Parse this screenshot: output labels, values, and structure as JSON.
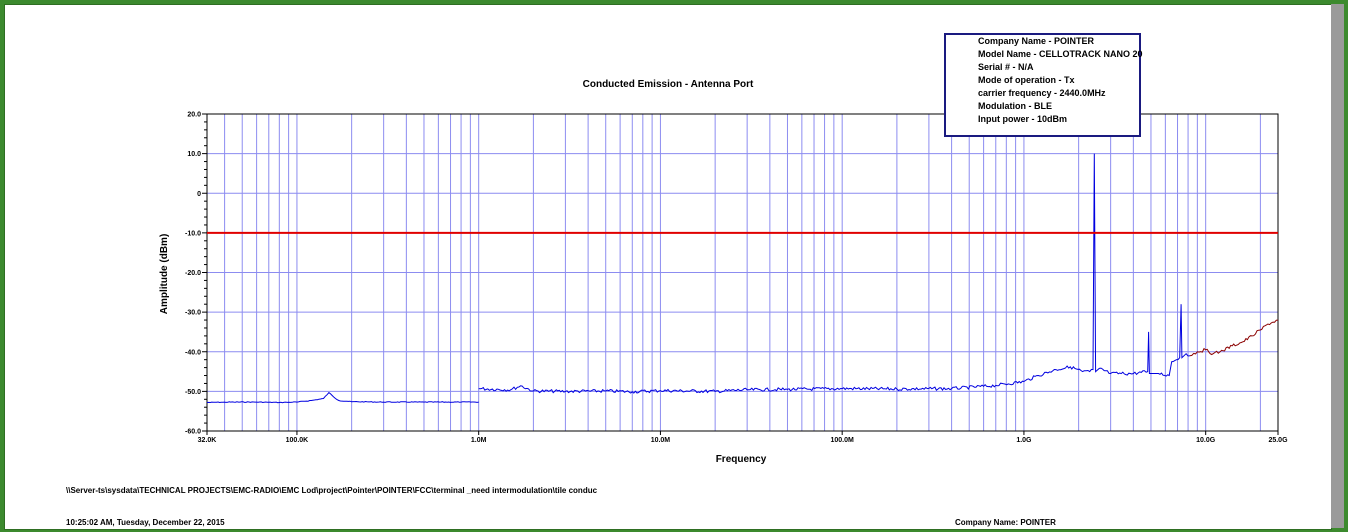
{
  "chart_data": {
    "type": "line",
    "title": "Conducted Emission - Antenna Port",
    "xlabel": "Frequency",
    "ylabel": "Amplitude (dBm)",
    "x_scale": "log",
    "xlim": [
      32000,
      25000000000
    ],
    "ylim": [
      -60,
      20
    ],
    "grid": true,
    "x_ticks": [
      {
        "value": 32000,
        "label": "32.0K"
      },
      {
        "value": 100000,
        "label": "100.0K"
      },
      {
        "value": 1000000,
        "label": "1.0M"
      },
      {
        "value": 10000000,
        "label": "10.0M"
      },
      {
        "value": 100000000,
        "label": "100.0M"
      },
      {
        "value": 1000000000,
        "label": "1.0G"
      },
      {
        "value": 10000000000,
        "label": "10.0G"
      },
      {
        "value": 25000000000,
        "label": "25.0G"
      }
    ],
    "y_ticks": [
      {
        "value": 20,
        "label": "20.0"
      },
      {
        "value": 10,
        "label": "10.0"
      },
      {
        "value": 0,
        "label": "0"
      },
      {
        "value": -10,
        "label": "-10.0"
      },
      {
        "value": -20,
        "label": "-20.0"
      },
      {
        "value": -30,
        "label": "-30.0"
      },
      {
        "value": -40,
        "label": "-40.0"
      },
      {
        "value": -50,
        "label": "-50.0"
      },
      {
        "value": -60,
        "label": "-60.0"
      }
    ],
    "limit_line": {
      "value": -10,
      "color": "#e00000"
    },
    "series": [
      {
        "color": "#0000e0",
        "x": [
          32000,
          45000,
          60000,
          80000,
          100000,
          120000,
          140000,
          150000,
          160000,
          170000,
          200000,
          300000,
          500000,
          800000,
          1000000
        ],
        "y": [
          -52.8,
          -52.7,
          -52.7,
          -52.8,
          -52.7,
          -52.3,
          -51.8,
          -50.3,
          -51.5,
          -52.3,
          -52.6,
          -52.7,
          -52.7,
          -52.7,
          -52.7
        ]
      },
      {
        "color": "#0000e0",
        "x": [
          1000000,
          1500000,
          1700000,
          2000000,
          3000000,
          5000000,
          7000000,
          10000000,
          20000000,
          30000000,
          50000000,
          100000000,
          200000000,
          400000000,
          700000000,
          1000000000,
          1200000000,
          1500000000,
          1800000000,
          2100000000,
          2300000000,
          2400000000,
          2440000000,
          2480000000,
          2600000000,
          3000000000,
          4000000000,
          4800000000,
          4850000000,
          4900000000,
          5500000000,
          6300000000,
          6500000000,
          6900000000,
          7200000000,
          7320000000,
          7400000000,
          7800000000,
          8200000000
        ],
        "y": [
          -49.3,
          -49.6,
          -48.6,
          -49.9,
          -50.0,
          -49.9,
          -50.1,
          -49.8,
          -50.0,
          -49.6,
          -49.5,
          -49.3,
          -49.4,
          -49.3,
          -48.5,
          -47.5,
          -46.0,
          -44.5,
          -43.8,
          -45.0,
          -45.0,
          -44.5,
          10.0,
          -45.0,
          -44.2,
          -45.5,
          -45.5,
          -45.0,
          -35.0,
          -45.5,
          -45.5,
          -46.0,
          -42.5,
          -42.0,
          -41.5,
          -28.0,
          -41.5,
          -40.5,
          -41.0
        ]
      },
      {
        "color": "#8b0000",
        "x": [
          8200000000,
          9000000000,
          10000000000,
          11000000000,
          12000000000,
          14000000000,
          16000000000,
          18000000000,
          20000000000,
          22000000000,
          25000000000
        ],
        "y": [
          -41.0,
          -40.0,
          -39.5,
          -40.5,
          -40.0,
          -38.5,
          -37.5,
          -36.0,
          -34.5,
          -33.0,
          -32.0
        ]
      }
    ]
  },
  "info_box": [
    "Company Name - POINTER",
    "Model Name - CELLOTRACK NANO 20",
    "Serial # - N/A",
    "Mode of operation - Tx",
    "carrier frequency - 2440.0MHz",
    "Modulation - BLE",
    "Input power - 10dBm"
  ],
  "footer": {
    "path": "\\\\Server-ts\\sysdata\\TECHNICAL PROJECTS\\EMC-RADIO\\EMC Lod\\project\\Pointer\\POINTER\\FCC\\terminal _need intermodulation\\tile conduc",
    "timestamp": "10:25:02 AM, Tuesday, December 22, 2015",
    "company": "Company Name: POINTER"
  }
}
